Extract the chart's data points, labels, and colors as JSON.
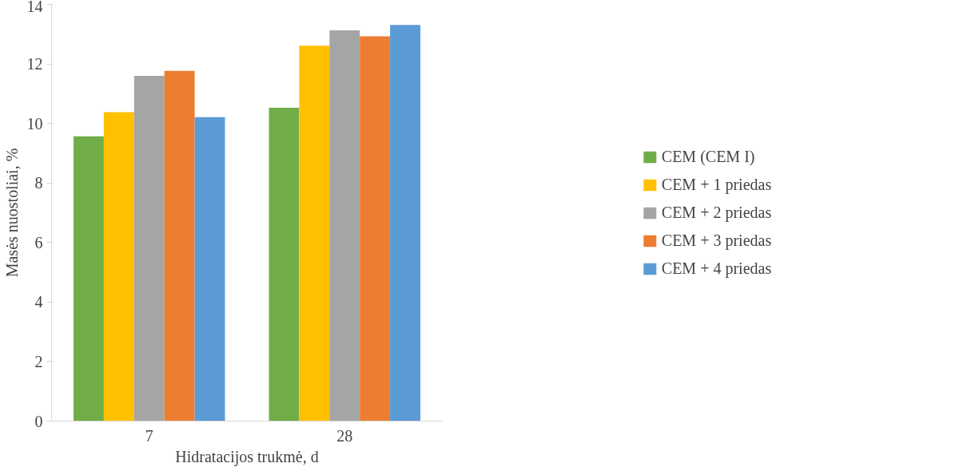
{
  "chart_data": {
    "type": "bar",
    "xlabel": "Hidratacijos trukmė, d",
    "ylabel": "Masės nuostoliai, %",
    "categories": [
      "7",
      "28"
    ],
    "series": [
      {
        "name": "CEM (CEM I)",
        "color": "#70ad47",
        "values": [
          9.57,
          10.53
        ]
      },
      {
        "name": "CEM + 1 priedas",
        "color": "#ffc000",
        "values": [
          10.38,
          12.61
        ]
      },
      {
        "name": "CEM + 2 priedas",
        "color": "#a5a5a5",
        "values": [
          11.6,
          13.13
        ]
      },
      {
        "name": "CEM + 3 priedas",
        "color": "#ed7d31",
        "values": [
          11.77,
          12.93
        ]
      },
      {
        "name": "CEM + 4 priedas",
        "color": "#5b9bd5",
        "values": [
          10.21,
          13.31
        ]
      }
    ],
    "ylim": [
      0,
      14
    ],
    "yticks": [
      0,
      2,
      4,
      6,
      8,
      10,
      12,
      14
    ],
    "grid": false,
    "legend": "right"
  }
}
